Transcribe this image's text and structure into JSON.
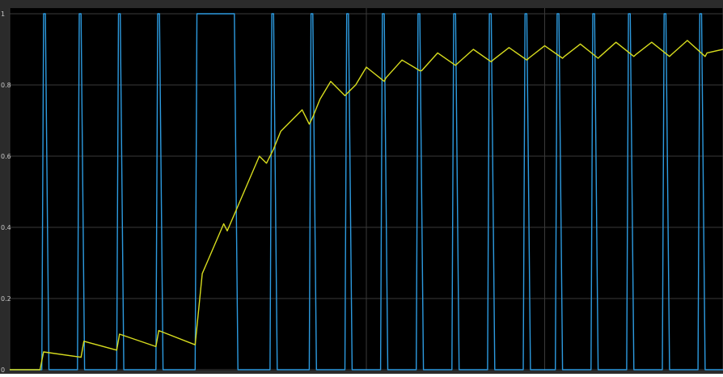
{
  "chart_data": {
    "type": "line",
    "title": "",
    "xlabel": "",
    "ylabel": "",
    "ylim": [
      0,
      1
    ],
    "xlim": [
      0,
      20
    ],
    "grid": true,
    "background": "#000000",
    "gridColor": "#3a3a3a",
    "yticks": [
      {
        "value": 0,
        "label": "0"
      },
      {
        "value": 0.2,
        "label": "0.2"
      },
      {
        "value": 0.4,
        "label": "0.4"
      },
      {
        "value": 0.6,
        "label": "0.6"
      },
      {
        "value": 0.8,
        "label": "0.8"
      },
      {
        "value": 1,
        "label": "1"
      }
    ],
    "xgrid": [
      0,
      10,
      15,
      20
    ],
    "series": [
      {
        "color": "#2d9be0",
        "x": [
          0.0,
          0.9,
          0.95,
          1.0,
          1.1,
          1.9,
          1.95,
          2.0,
          2.1,
          3.0,
          3.05,
          3.1,
          3.2,
          4.1,
          4.15,
          4.2,
          4.3,
          5.2,
          5.25,
          5.3,
          5.35,
          6.2,
          6.25,
          6.3,
          6.4,
          7.3,
          7.35,
          7.4,
          7.5,
          8.4,
          8.45,
          8.5,
          8.6,
          9.4,
          9.45,
          9.5,
          9.6,
          10.4,
          10.45,
          10.5,
          10.6,
          11.4,
          11.45,
          11.5,
          11.6,
          12.4,
          12.45,
          12.5,
          12.6,
          13.4,
          13.45,
          13.5,
          13.6,
          14.4,
          14.45,
          14.5,
          14.6,
          15.3,
          15.35,
          15.4,
          15.5,
          16.3,
          16.35,
          16.4,
          16.5,
          17.3,
          17.35,
          17.4,
          17.5,
          18.3,
          18.35,
          18.4,
          18.5,
          19.3,
          19.35,
          19.4,
          19.5,
          20.0
        ],
        "y": [
          0,
          0,
          1,
          1,
          0,
          0,
          1,
          1,
          0,
          0,
          1,
          1,
          0,
          0,
          1,
          1,
          0,
          0,
          1,
          1,
          1,
          1,
          1,
          1,
          0,
          0,
          1,
          1,
          0,
          0,
          1,
          1,
          0,
          0,
          1,
          1,
          0,
          0,
          1,
          1,
          0,
          0,
          1,
          1,
          0,
          0,
          1,
          1,
          0,
          0,
          1,
          1,
          0,
          0,
          1,
          1,
          0,
          0,
          1,
          1,
          0,
          0,
          1,
          1,
          0,
          0,
          1,
          1,
          0,
          0,
          1,
          1,
          0,
          0,
          1,
          1,
          0,
          0
        ]
      },
      {
        "color": "#d7dc1e",
        "x": [
          0.0,
          0.85,
          0.95,
          2.0,
          2.08,
          3.0,
          3.08,
          4.1,
          4.18,
          5.2,
          5.4,
          6.0,
          6.1,
          7.0,
          7.2,
          7.4,
          7.6,
          8.2,
          8.4,
          8.5,
          8.7,
          9.0,
          9.4,
          9.5,
          9.7,
          10.0,
          10.5,
          10.55,
          11.0,
          11.5,
          11.55,
          12.0,
          12.5,
          12.55,
          13.0,
          13.5,
          13.55,
          14.0,
          14.5,
          14.55,
          15.0,
          15.5,
          15.55,
          16.0,
          16.5,
          16.55,
          17.0,
          17.5,
          17.55,
          18.0,
          18.5,
          18.55,
          19.0,
          19.5,
          19.55,
          20.0
        ],
        "y": [
          0,
          0,
          0.05,
          0.035,
          0.08,
          0.055,
          0.1,
          0.065,
          0.11,
          0.07,
          0.27,
          0.41,
          0.39,
          0.6,
          0.58,
          0.62,
          0.67,
          0.73,
          0.69,
          0.71,
          0.76,
          0.81,
          0.77,
          0.78,
          0.8,
          0.85,
          0.81,
          0.82,
          0.87,
          0.84,
          0.84,
          0.89,
          0.855,
          0.86,
          0.9,
          0.865,
          0.87,
          0.905,
          0.87,
          0.875,
          0.91,
          0.875,
          0.88,
          0.915,
          0.875,
          0.88,
          0.92,
          0.88,
          0.885,
          0.92,
          0.88,
          0.885,
          0.925,
          0.88,
          0.89,
          0.9
        ]
      }
    ]
  }
}
